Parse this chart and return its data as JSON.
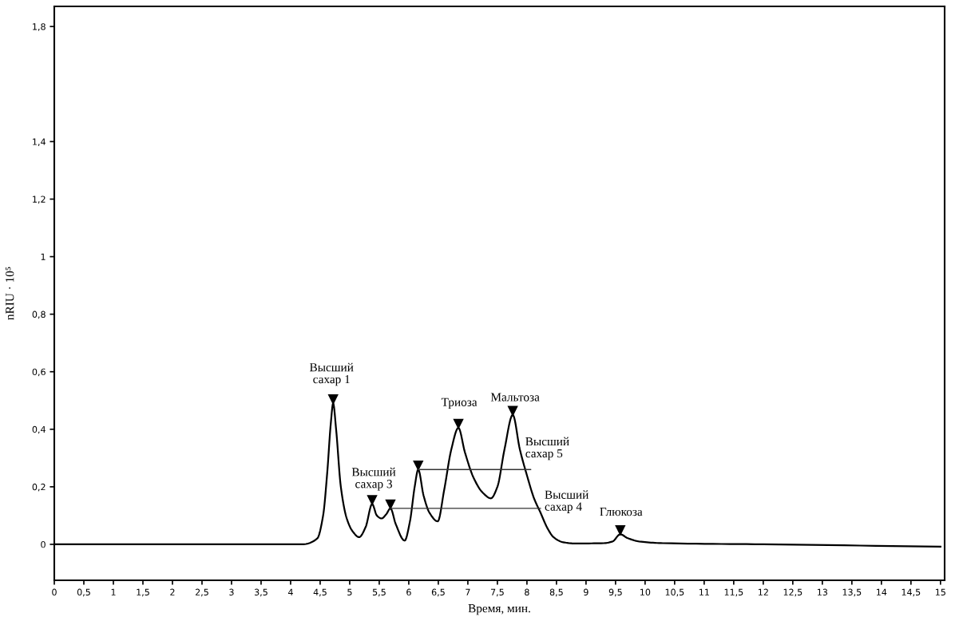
{
  "chart_data": {
    "type": "line",
    "xlabel": "Время, мин.",
    "ylabel": "nRIU · 10⁵",
    "xlim": [
      0,
      15.07
    ],
    "ylim": [
      -0.125,
      1.87
    ],
    "xticks": [
      0,
      {
        "value": 0.5,
        "label": "0,5"
      },
      1,
      {
        "value": 1.5,
        "label": "1,5"
      },
      2,
      {
        "value": 2.5,
        "label": "2,5"
      },
      3,
      {
        "value": 3.5,
        "label": "3,5"
      },
      4,
      {
        "value": 4.5,
        "label": "4,5"
      },
      5,
      {
        "value": 5.5,
        "label": "5,5"
      },
      6,
      {
        "value": 6.5,
        "label": "6,5"
      },
      7,
      {
        "value": 7.5,
        "label": "7,5"
      },
      8,
      {
        "value": 8.5,
        "label": "8,5"
      },
      9,
      {
        "value": 9.5,
        "label": "9,5"
      },
      10,
      {
        "value": 10.5,
        "label": "10,5"
      },
      11,
      {
        "value": 11.5,
        "label": "11,5"
      },
      12,
      {
        "value": 12.5,
        "label": "12,5"
      },
      13,
      {
        "value": 13.5,
        "label": "13,5"
      },
      14,
      {
        "value": 14.5,
        "label": "14,5"
      },
      15
    ],
    "yticks": [
      0,
      {
        "value": 0.2,
        "label": "0,2"
      },
      {
        "value": 0.4,
        "label": "0,4"
      },
      {
        "value": 0.6,
        "label": "0,6"
      },
      {
        "value": 0.8,
        "label": "0,8"
      },
      1,
      {
        "value": 1.2,
        "label": "1,2"
      },
      {
        "value": 1.4,
        "label": "1,4"
      },
      {
        "value": 1.8,
        "label": "1,8"
      }
    ],
    "grid": false,
    "series": [
      {
        "color": "#000000",
        "x": [
          0,
          4.2,
          4.45,
          4.55,
          4.62,
          4.68,
          4.72,
          4.77,
          4.85,
          4.95,
          5.05,
          5.16,
          5.27,
          5.38,
          5.46,
          5.54,
          5.62,
          5.69,
          5.78,
          5.93,
          6.02,
          6.1,
          6.16,
          6.25,
          6.35,
          6.49,
          6.6,
          6.72,
          6.84,
          6.95,
          7.1,
          7.25,
          7.39,
          7.5,
          7.62,
          7.76,
          7.88,
          8.0,
          8.12,
          8.23,
          8.35,
          8.45,
          8.6,
          8.8,
          9.3,
          9.45,
          9.58,
          9.7,
          9.9,
          10.3,
          12,
          15
        ],
        "values": [
          0,
          0,
          0.02,
          0.1,
          0.25,
          0.42,
          0.49,
          0.4,
          0.2,
          0.09,
          0.045,
          0.025,
          0.06,
          0.14,
          0.1,
          0.09,
          0.105,
          0.125,
          0.07,
          0.013,
          0.08,
          0.2,
          0.26,
          0.17,
          0.11,
          0.08,
          0.19,
          0.33,
          0.405,
          0.32,
          0.23,
          0.18,
          0.16,
          0.2,
          0.33,
          0.45,
          0.33,
          0.24,
          0.16,
          0.11,
          0.055,
          0.025,
          0.008,
          0.003,
          0.004,
          0.01,
          0.035,
          0.022,
          0.01,
          0.004,
          0,
          -0.008
        ]
      }
    ],
    "annotations": [
      {
        "text": "Высший\nсахар 1",
        "x": 4.72,
        "y": 0.49
      },
      {
        "text": "Высший\nсахар 3",
        "x": 5.38,
        "y": 0.14
      },
      {
        "text": "Высший\nсахар 4",
        "x": 5.69,
        "y": 0.125
      },
      {
        "text": "Высший\nсахар 5",
        "x": 6.16,
        "y": 0.26
      },
      {
        "text": "Триоза",
        "x": 6.84,
        "y": 0.405
      },
      {
        "text": "Мальтоза",
        "x": 7.76,
        "y": 0.45
      },
      {
        "text": "Глюкоза",
        "x": 9.58,
        "y": 0.035
      }
    ]
  }
}
